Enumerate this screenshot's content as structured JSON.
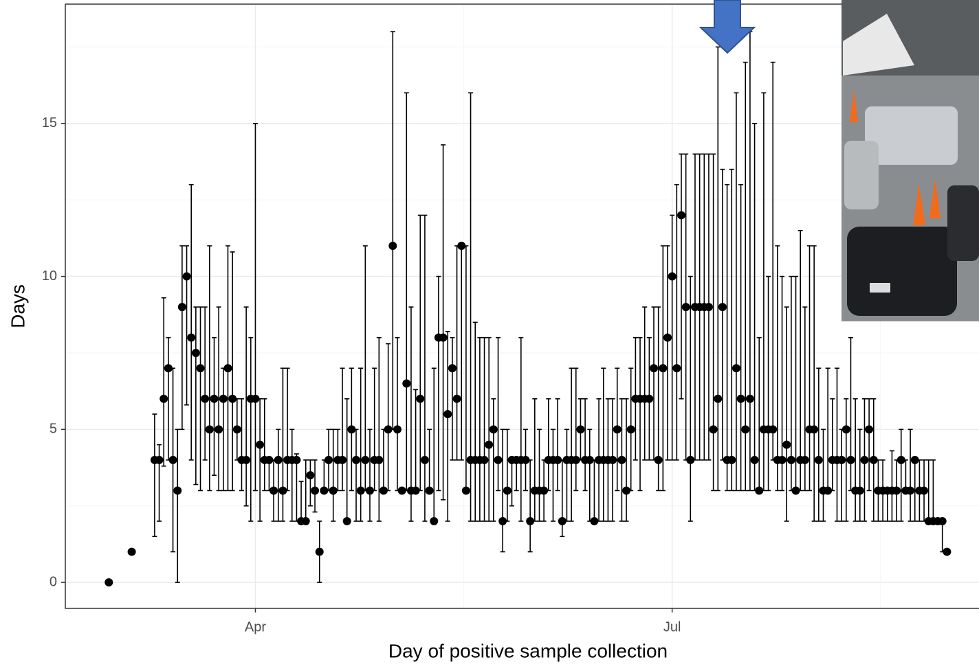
{
  "chart_data": {
    "type": "scatter",
    "x_label": "Day of positive sample collection",
    "y_label": "Days",
    "x": [
      0,
      5,
      10,
      11,
      12,
      13,
      14,
      15,
      16,
      17,
      18,
      19,
      20,
      21,
      22,
      23,
      24,
      25,
      26,
      27,
      28,
      29,
      30,
      31,
      32,
      33,
      34,
      35,
      36,
      37,
      38,
      39,
      40,
      41,
      42,
      43,
      44,
      45,
      46,
      47,
      48,
      49,
      50,
      51,
      52,
      53,
      54,
      55,
      56,
      57,
      58,
      59,
      60,
      61,
      62,
      63,
      64,
      65,
      66,
      67,
      68,
      69,
      70,
      71,
      72,
      73,
      74,
      75,
      76,
      77,
      78,
      79,
      80,
      81,
      82,
      83,
      84,
      85,
      86,
      87,
      88,
      89,
      90,
      91,
      92,
      93,
      94,
      95,
      96,
      97,
      98,
      99,
      100,
      101,
      102,
      103,
      104,
      105,
      106,
      107,
      108,
      109,
      110,
      111,
      112,
      113,
      114,
      115,
      116,
      117,
      118,
      119,
      120,
      121,
      122,
      123,
      124,
      125,
      126,
      127,
      128,
      129,
      130,
      131,
      132,
      133,
      134,
      135,
      136,
      137,
      138,
      139,
      140,
      141,
      142,
      143,
      144,
      145,
      146,
      147,
      148,
      149,
      150,
      151,
      152,
      153,
      154,
      155,
      156,
      157,
      158,
      159,
      160,
      161,
      162,
      163,
      164,
      165,
      166,
      167,
      168,
      169,
      170,
      171,
      172,
      173,
      174,
      175,
      176,
      177,
      178,
      179,
      180,
      181,
      182,
      183
    ],
    "values": [
      0,
      1,
      4,
      4,
      6,
      7,
      4,
      3,
      9,
      10,
      8,
      7.5,
      7,
      6,
      5,
      6,
      5,
      6,
      7,
      6,
      5,
      4,
      4,
      6,
      6,
      4.5,
      4,
      4,
      3,
      4,
      3,
      4,
      4,
      4,
      2,
      2,
      3.5,
      3,
      1,
      3,
      4,
      3,
      4,
      4,
      2,
      5,
      4,
      3,
      4,
      3,
      4,
      4,
      3,
      5,
      11,
      5,
      3,
      6.5,
      3,
      3,
      6,
      4,
      3,
      2,
      8,
      8,
      5.5,
      7,
      6,
      11,
      3,
      4,
      4,
      4,
      4,
      4.5,
      5,
      4,
      2,
      3,
      4,
      4,
      4,
      4,
      2,
      3,
      3,
      3,
      4,
      4,
      4,
      2,
      4,
      4,
      4,
      5,
      4,
      4,
      2,
      4,
      4,
      4,
      4,
      5,
      4,
      3,
      5,
      6,
      6,
      6,
      6,
      7,
      4,
      7,
      8,
      10,
      7,
      12,
      9,
      4,
      9,
      9,
      9,
      9,
      5,
      6,
      9,
      4,
      4,
      7,
      6,
      5,
      6,
      4,
      3,
      5,
      5,
      5,
      4,
      4,
      4.5,
      4,
      3,
      4,
      4,
      5,
      5,
      4,
      3,
      3,
      4,
      4,
      4,
      5,
      4,
      3,
      3,
      4,
      5,
      4,
      3,
      3,
      3,
      3,
      3,
      4,
      3,
      3,
      4,
      3,
      3,
      2,
      2,
      2,
      2,
      1
    ],
    "low": [
      0,
      1,
      1.5,
      2,
      3.8,
      4,
      1,
      0,
      5,
      5.8,
      4,
      3.2,
      3,
      4,
      3,
      3.5,
      3,
      3,
      3,
      3,
      4,
      3,
      2.5,
      2,
      3,
      2,
      3,
      3,
      2,
      2,
      2,
      3,
      2,
      2,
      2,
      2,
      2.5,
      2.3,
      0,
      3,
      3,
      2,
      3,
      3,
      2,
      3,
      2,
      2,
      3,
      2,
      3,
      2,
      3,
      3,
      5,
      3,
      3,
      3,
      2,
      3,
      3,
      2,
      3,
      2,
      3,
      2.7,
      2,
      4,
      4,
      4,
      3,
      2,
      2,
      2,
      2,
      2,
      2,
      3,
      1,
      2,
      2.5,
      3,
      2,
      3,
      1,
      2,
      2,
      2,
      3,
      2,
      3,
      1.5,
      2,
      2,
      3,
      4,
      3,
      2,
      2,
      2,
      2,
      2,
      2,
      3,
      2,
      2,
      3,
      4,
      3,
      4,
      4,
      4,
      3,
      3,
      4,
      4,
      4,
      6,
      4,
      2,
      4,
      4,
      4,
      4,
      3,
      3,
      4,
      3,
      3,
      3,
      3,
      3,
      3,
      3,
      3,
      3,
      3,
      4,
      3,
      3,
      2,
      3,
      3,
      3,
      3,
      3,
      2,
      2,
      2,
      3,
      3,
      2,
      2,
      2,
      3,
      2,
      2,
      2,
      3,
      2,
      2,
      2,
      2,
      2,
      2,
      2,
      3,
      2,
      2,
      2,
      2,
      2,
      2,
      2,
      1,
      1
    ],
    "high": [
      0,
      1,
      5.5,
      4.5,
      9.3,
      8,
      7,
      5,
      11,
      11,
      13,
      9,
      9,
      9,
      11,
      8,
      9,
      7,
      11,
      10.8,
      6,
      6,
      9,
      8,
      15,
      6,
      6,
      4,
      4,
      5,
      7,
      7,
      5,
      4.2,
      3.3,
      4,
      4,
      4,
      2,
      4,
      5,
      5,
      5,
      7,
      6,
      7,
      5,
      7,
      11,
      5,
      7,
      8,
      5,
      7.8,
      18,
      8,
      3,
      16,
      9,
      6.3,
      12,
      12,
      5,
      7,
      10,
      14.3,
      8.2,
      8,
      11,
      11,
      11,
      16,
      8.5,
      8,
      8,
      8,
      6,
      8,
      5,
      5,
      4,
      4,
      8,
      5,
      4,
      6,
      5,
      4,
      6,
      5,
      6,
      4,
      5,
      7,
      7,
      6,
      6,
      5,
      4,
      6,
      7,
      6,
      6,
      7,
      6,
      6,
      7,
      8,
      8,
      9,
      8,
      9,
      9,
      11,
      11,
      12,
      13,
      14,
      14,
      10,
      14,
      14,
      14,
      14,
      14,
      17.5,
      13.5,
      13,
      13.5,
      16,
      13,
      17,
      18,
      15,
      8,
      16,
      10,
      17,
      11,
      10,
      9,
      10,
      10,
      11.5,
      9,
      11,
      11,
      7,
      5,
      7,
      6,
      7,
      5,
      6,
      8,
      6,
      5,
      6,
      6,
      6,
      4,
      4,
      3,
      4.3,
      4,
      5,
      4,
      5,
      4,
      4,
      4,
      4,
      4,
      2,
      2,
      1
    ],
    "color": "#000000",
    "xlim": [
      -9.5,
      190
    ],
    "xticks": [
      {
        "value": 32,
        "label": "Apr"
      },
      {
        "value": 123,
        "label": "Jul"
      }
    ],
    "ylim": [
      -0.85,
      18.9
    ],
    "yticks": [
      0,
      5,
      10,
      15
    ],
    "grid": true
  }
}
